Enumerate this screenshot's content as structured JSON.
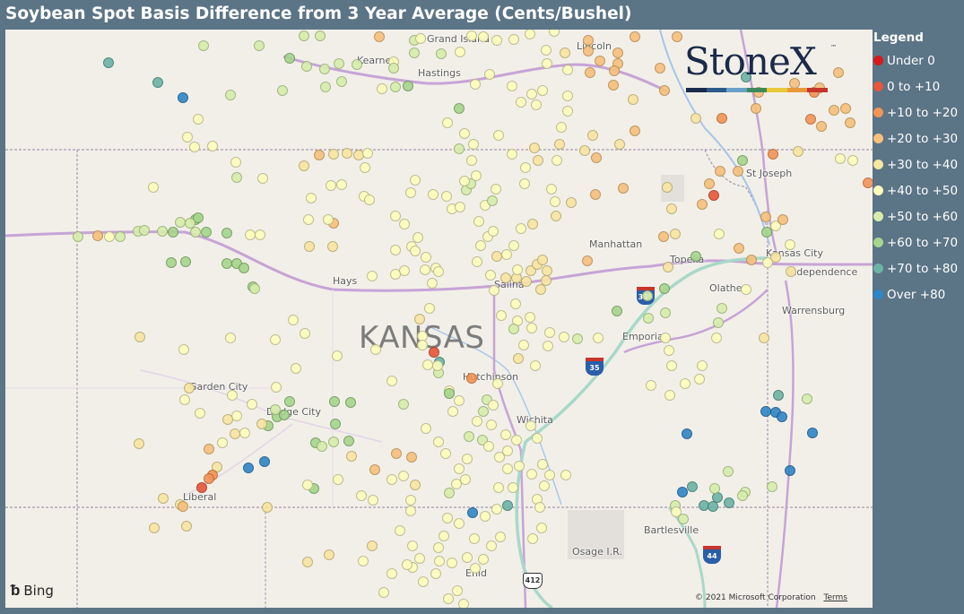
{
  "title": "Soybean Spot Basis Difference from 3 Year Average (Cents/Bushel)",
  "map": {
    "state_label": "KANSAS",
    "places": [
      {
        "name": "Grand Island",
        "lx": 470,
        "ly": 4
      },
      {
        "name": "Kearney",
        "lx": 392,
        "ly": 28
      },
      {
        "name": "Hastings",
        "lx": 460,
        "ly": 42
      },
      {
        "name": "Lincoln",
        "lx": 637,
        "ly": 12
      },
      {
        "name": "St Joseph",
        "lx": 826,
        "ly": 154
      },
      {
        "name": "Manhattan",
        "lx": 651,
        "ly": 233
      },
      {
        "name": "Topeka",
        "lx": 741,
        "ly": 250
      },
      {
        "name": "Kansas City",
        "lx": 848,
        "ly": 243
      },
      {
        "name": "Independence",
        "lx": 872,
        "ly": 264
      },
      {
        "name": "Olathe",
        "lx": 785,
        "ly": 282
      },
      {
        "name": "Hays",
        "lx": 365,
        "ly": 274
      },
      {
        "name": "Salina",
        "lx": 545,
        "ly": 278
      },
      {
        "name": "Warrensburg",
        "lx": 866,
        "ly": 307
      },
      {
        "name": "Emporia",
        "lx": 688,
        "ly": 336
      },
      {
        "name": "Hutchinson",
        "lx": 510,
        "ly": 381
      },
      {
        "name": "Garden City",
        "lx": 205,
        "ly": 392
      },
      {
        "name": "Dodge City",
        "lx": 291,
        "ly": 420
      },
      {
        "name": "Wichita",
        "lx": 570,
        "ly": 429
      },
      {
        "name": "Liberal",
        "lx": 198,
        "ly": 515
      },
      {
        "name": "Bartlesville",
        "lx": 712,
        "ly": 552
      },
      {
        "name": "Osage I.R.",
        "lx": 632,
        "ly": 576
      },
      {
        "name": "Enid",
        "lx": 513,
        "ly": 600
      }
    ],
    "shields": [
      {
        "text": "335",
        "type": "i"
      },
      {
        "text": "35",
        "type": "i"
      },
      {
        "text": "44",
        "type": "i"
      },
      {
        "text": "412",
        "type": "us"
      }
    ],
    "attribution": {
      "provider": "Bing",
      "copyright": "© 2021 Microsoft Corporation",
      "terms": "Terms"
    }
  },
  "logo": {
    "text": "StoneX",
    "tm": "™",
    "stripe_colors": [
      "#1a2a4a",
      "#2e5a8a",
      "#6aa0c8",
      "#3d8a5a",
      "#e8c83a",
      "#e89a3a",
      "#c7352b"
    ]
  },
  "legend": {
    "title": "Legend",
    "items": [
      {
        "label": "Under 0",
        "color": "#d7191c"
      },
      {
        "label": "0 to +10",
        "color": "#e8553a"
      },
      {
        "label": "+10 to +20",
        "color": "#f39455"
      },
      {
        "label": "+20 to +30",
        "color": "#f7c07c"
      },
      {
        "label": "+30 to +40",
        "color": "#f8e6a2"
      },
      {
        "label": "+40 to +50",
        "color": "#fefebd"
      },
      {
        "label": "+50 to +60",
        "color": "#d8edab"
      },
      {
        "label": "+60 to +70",
        "color": "#a6d58c"
      },
      {
        "label": "+70 to +80",
        "color": "#6cb3a4"
      },
      {
        "label": "Over +80",
        "color": "#2f86c7"
      }
    ]
  }
}
